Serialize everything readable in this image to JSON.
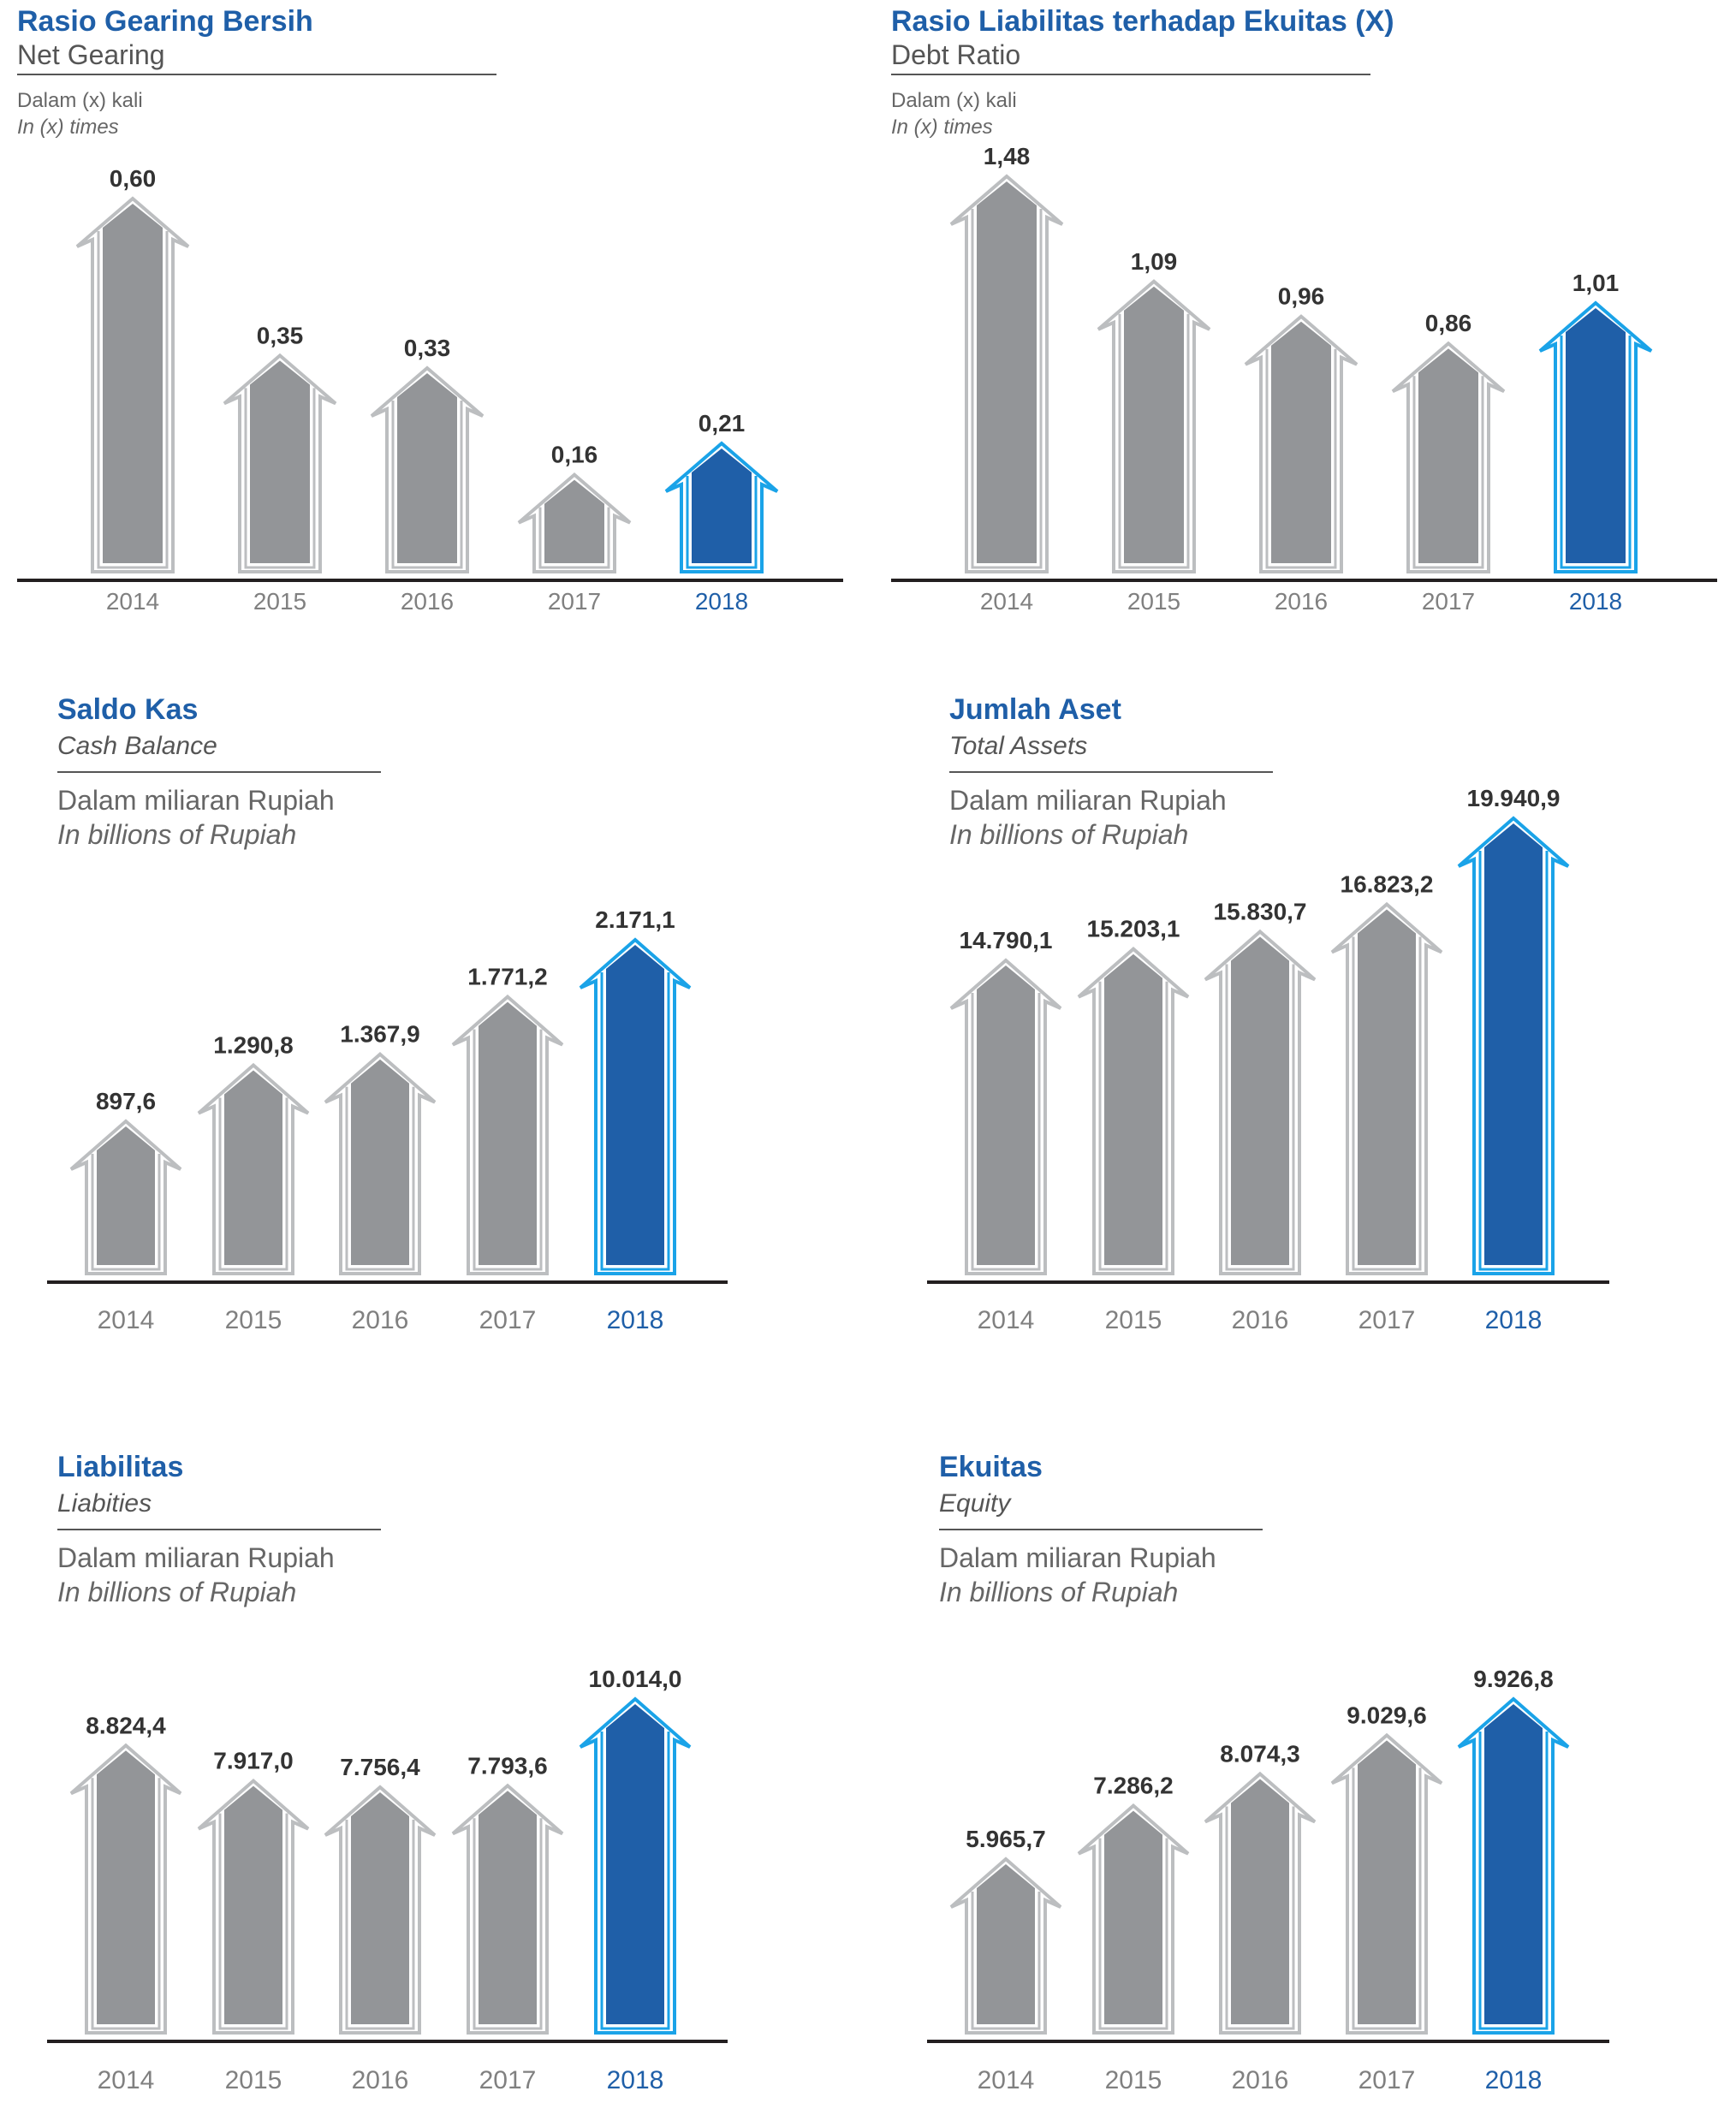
{
  "colors": {
    "title_blue": "#1f5fa8",
    "bar_gray": "#939598",
    "outline_gray": "#bcbec0",
    "bar_blue": "#1f5fa8",
    "outline_blue": "#1aa3e8",
    "year_gray": "#808080"
  },
  "panels": [
    {
      "title": "Rasio Gearing Bersih",
      "subtitle": "Net Gearing",
      "unit_id": "Dalam (x) kali",
      "unit_en": "In (x) times"
    },
    {
      "title": "Rasio Liabilitas terhadap Ekuitas (X)",
      "subtitle": "Debt Ratio",
      "unit_id": "Dalam (x) kali",
      "unit_en": "In (x) times"
    },
    {
      "title": "Saldo Kas",
      "subtitle": "Cash Balance",
      "unit_id": "Dalam miliaran Rupiah",
      "unit_en": "In billions of Rupiah"
    },
    {
      "title": "Jumlah Aset",
      "subtitle": "Total Assets",
      "unit_id": "Dalam miliaran Rupiah",
      "unit_en": "In billions of Rupiah"
    },
    {
      "title": "Liabilitas",
      "subtitle": "Liabities",
      "unit_id": "Dalam miliaran Rupiah",
      "unit_en": "In billions of Rupiah"
    },
    {
      "title": "Ekuitas",
      "subtitle": "Equity",
      "unit_id": "Dalam miliaran Rupiah",
      "unit_en": "In billions of Rupiah"
    }
  ],
  "chart_data": [
    {
      "type": "bar",
      "title": "Rasio Gearing Bersih",
      "categories": [
        "2014",
        "2015",
        "2016",
        "2017",
        "2018"
      ],
      "values": [
        0.6,
        0.35,
        0.33,
        0.16,
        0.21
      ],
      "labels": [
        "0,60",
        "0,35",
        "0,33",
        "0,16",
        "0,21"
      ],
      "highlight": "2018"
    },
    {
      "type": "bar",
      "title": "Rasio Liabilitas terhadap Ekuitas (X)",
      "categories": [
        "2014",
        "2015",
        "2016",
        "2017",
        "2018"
      ],
      "values": [
        1.48,
        1.09,
        0.96,
        0.86,
        1.01
      ],
      "labels": [
        "1,48",
        "1,09",
        "0,96",
        "0,86",
        "1,01"
      ],
      "highlight": "2018"
    },
    {
      "type": "bar",
      "title": "Saldo Kas",
      "categories": [
        "2014",
        "2015",
        "2016",
        "2017",
        "2018"
      ],
      "values": [
        897.6,
        1290.8,
        1367.9,
        1771.2,
        2171.1
      ],
      "labels": [
        "897,6",
        "1.290,8",
        "1.367,9",
        "1.771,2",
        "2.171,1"
      ],
      "highlight": "2018"
    },
    {
      "type": "bar",
      "title": "Jumlah Aset",
      "categories": [
        "2014",
        "2015",
        "2016",
        "2017",
        "2018"
      ],
      "values": [
        14790.1,
        15203.1,
        15830.7,
        16823.2,
        19940.9
      ],
      "labels": [
        "14.790,1",
        "15.203,1",
        "15.830,7",
        "16.823,2",
        "19.940,9"
      ],
      "highlight": "2018"
    },
    {
      "type": "bar",
      "title": "Liabilitas",
      "categories": [
        "2014",
        "2015",
        "2016",
        "2017",
        "2018"
      ],
      "values": [
        8824.4,
        7917.0,
        7756.4,
        7793.6,
        10014.0
      ],
      "labels": [
        "8.824,4",
        "7.917,0",
        "7.756,4",
        "7.793,6",
        "10.014,0"
      ],
      "highlight": "2018"
    },
    {
      "type": "bar",
      "title": "Ekuitas",
      "categories": [
        "2014",
        "2015",
        "2016",
        "2017",
        "2018"
      ],
      "values": [
        5965.7,
        7286.2,
        8074.3,
        9029.6,
        9926.8
      ],
      "labels": [
        "5.965,7",
        "7.286,2",
        "8.074,3",
        "9.029,6",
        "9.926,8"
      ],
      "highlight": "2018"
    }
  ]
}
